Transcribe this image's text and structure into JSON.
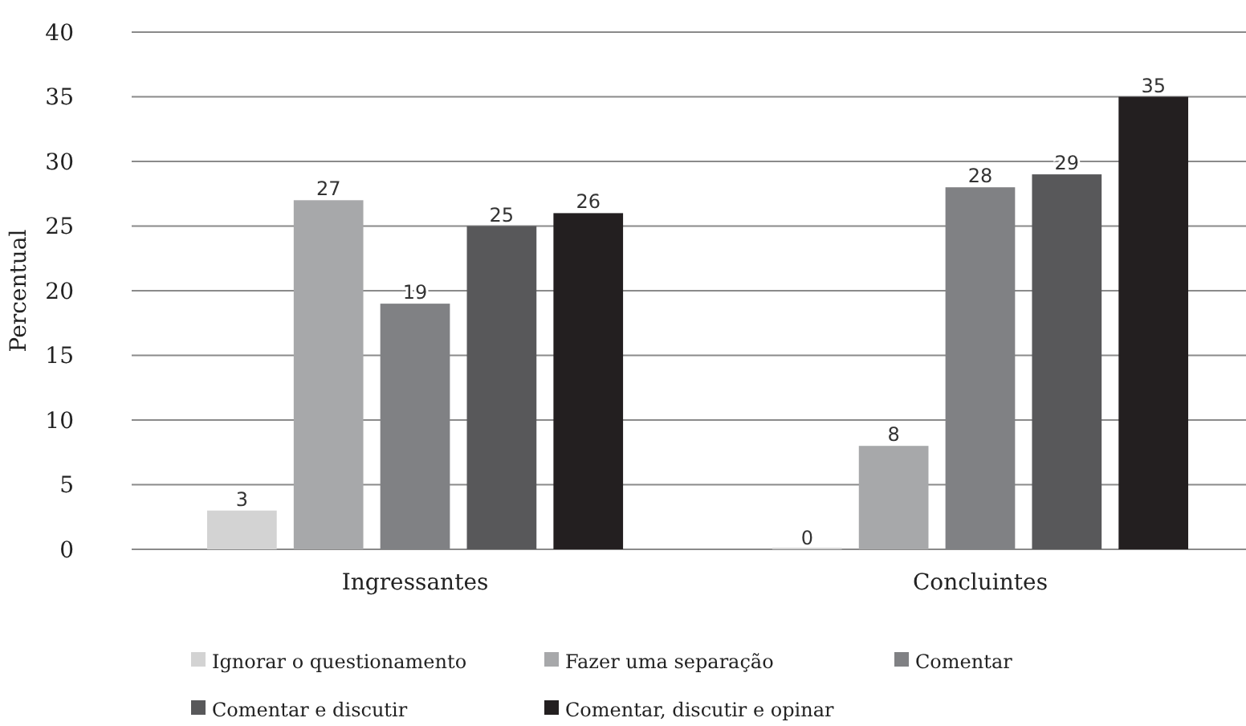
{
  "chart_data": {
    "type": "bar",
    "ylabel": "Percentual",
    "categories": [
      "Ingressantes",
      "Concluintes"
    ],
    "series": [
      {
        "name": "Ignorar o questionamento",
        "color": "#d3d3d3",
        "values": [
          3,
          0
        ]
      },
      {
        "name": "Fazer uma separação",
        "color": "#a7a8aa",
        "values": [
          27,
          8
        ]
      },
      {
        "name": "Comentar",
        "color": "#808184",
        "values": [
          19,
          28
        ]
      },
      {
        "name": "Comentar e discutir",
        "color": "#58585a",
        "values": [
          25,
          29
        ]
      },
      {
        "name": "Comentar, discutir e opinar",
        "color": "#231f20",
        "values": [
          26,
          35
        ]
      }
    ],
    "ylim": [
      0,
      40
    ],
    "yticks": [
      0,
      5,
      10,
      15,
      20,
      25,
      30,
      35,
      40
    ],
    "grid": "y",
    "data_labels": true,
    "legend": "bottom"
  }
}
